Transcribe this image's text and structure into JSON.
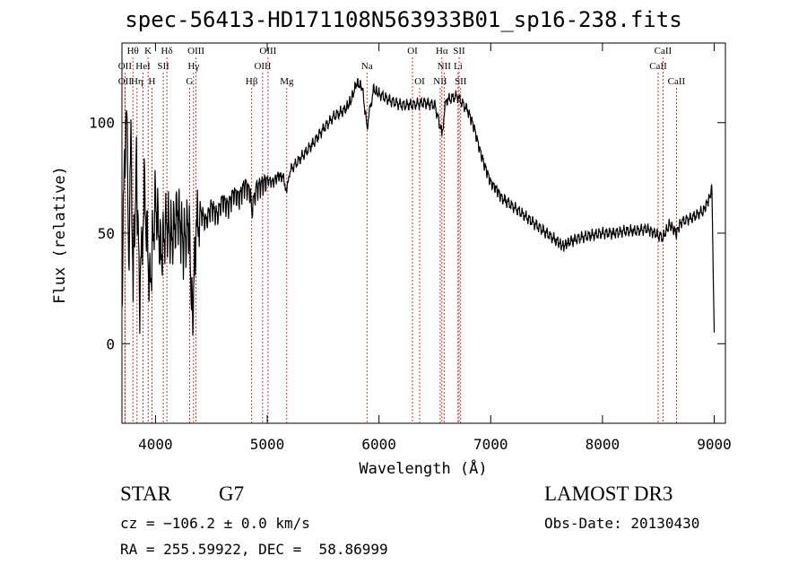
{
  "title": "spec-56413-HD171108N563933B01_sp16-238.fits",
  "info": {
    "object_class": "STAR",
    "subclass": "G7",
    "survey": "LAMOST DR3",
    "cz": "cz = −106.2 ± 0.0 km/s",
    "obs_date": "Obs-Date: 20130430",
    "radec": "RA = 255.59922, DEC =  58.86999"
  },
  "colors": {
    "spectrum": "#000000",
    "line_markers": "#cc0000",
    "axes": "#000000"
  },
  "chart_data": {
    "type": "line",
    "title": "spec-56413-HD171108N563933B01_sp16-238.fits",
    "xlabel": "Wavelength (Å)",
    "ylabel": "Flux (relative)",
    "xlim": [
      3700,
      9100
    ],
    "ylim": [
      -36,
      136
    ],
    "xticks": [
      4000,
      5000,
      6000,
      7000,
      8000,
      9000
    ],
    "yticks": [
      0,
      50,
      100
    ],
    "grid": false,
    "series": [
      {
        "points": [
          [
            3700,
            20
          ],
          [
            3720,
            75
          ],
          [
            3740,
            110
          ],
          [
            3760,
            40
          ],
          [
            3780,
            90
          ],
          [
            3800,
            30
          ],
          [
            3830,
            80
          ],
          [
            3860,
            20
          ],
          [
            3900,
            70
          ],
          [
            3950,
            25
          ],
          [
            4000,
            65
          ],
          [
            4050,
            40
          ],
          [
            4100,
            55
          ],
          [
            4150,
            48
          ],
          [
            4200,
            60
          ],
          [
            4250,
            45
          ],
          [
            4300,
            55
          ],
          [
            4330,
            10
          ],
          [
            4360,
            50
          ],
          [
            4400,
            60
          ],
          [
            4450,
            55
          ],
          [
            4500,
            62
          ],
          [
            4550,
            58
          ],
          [
            4600,
            65
          ],
          [
            4650,
            62
          ],
          [
            4700,
            68
          ],
          [
            4750,
            66
          ],
          [
            4800,
            72
          ],
          [
            4850,
            68
          ],
          [
            4861,
            60
          ],
          [
            4900,
            70
          ],
          [
            4950,
            72
          ],
          [
            5000,
            74
          ],
          [
            5050,
            73
          ],
          [
            5100,
            76
          ],
          [
            5150,
            75
          ],
          [
            5175,
            68
          ],
          [
            5200,
            78
          ],
          [
            5300,
            84
          ],
          [
            5400,
            90
          ],
          [
            5500,
            97
          ],
          [
            5600,
            103
          ],
          [
            5700,
            106
          ],
          [
            5750,
            110
          ],
          [
            5800,
            118
          ],
          [
            5850,
            116
          ],
          [
            5893,
            98
          ],
          [
            5950,
            115
          ],
          [
            6000,
            113
          ],
          [
            6100,
            110
          ],
          [
            6200,
            108
          ],
          [
            6300,
            108
          ],
          [
            6400,
            109
          ],
          [
            6500,
            108
          ],
          [
            6563,
            95
          ],
          [
            6600,
            110
          ],
          [
            6700,
            112
          ],
          [
            6800,
            105
          ],
          [
            6850,
            98
          ],
          [
            6900,
            88
          ],
          [
            6950,
            80
          ],
          [
            7000,
            73
          ],
          [
            7050,
            70
          ],
          [
            7100,
            66
          ],
          [
            7200,
            62
          ],
          [
            7300,
            58
          ],
          [
            7400,
            54
          ],
          [
            7500,
            50
          ],
          [
            7600,
            46
          ],
          [
            7650,
            44
          ],
          [
            7700,
            46
          ],
          [
            7800,
            48
          ],
          [
            7900,
            49
          ],
          [
            8000,
            50
          ],
          [
            8100,
            50
          ],
          [
            8200,
            51
          ],
          [
            8300,
            51
          ],
          [
            8400,
            52
          ],
          [
            8498,
            49
          ],
          [
            8542,
            48
          ],
          [
            8600,
            54
          ],
          [
            8662,
            50
          ],
          [
            8700,
            55
          ],
          [
            8800,
            57
          ],
          [
            8900,
            60
          ],
          [
            8950,
            65
          ],
          [
            8980,
            70
          ],
          [
            9000,
            5
          ]
        ]
      }
    ],
    "line_markers": [
      {
        "label": "Hθ",
        "x": 3798,
        "row": 0
      },
      {
        "label": "K",
        "x": 3934,
        "row": 0
      },
      {
        "label": "Hδ",
        "x": 4102,
        "row": 0
      },
      {
        "label": "OII",
        "x": 3727,
        "row": 1
      },
      {
        "label": "HeI",
        "x": 3889,
        "row": 1
      },
      {
        "label": "SII",
        "x": 4070,
        "row": 1
      },
      {
        "label": "OII",
        "x": 3727,
        "row": 2
      },
      {
        "label": "Hη",
        "x": 3835,
        "row": 2
      },
      {
        "label": "H",
        "x": 3969,
        "row": 2
      },
      {
        "label": "OIII",
        "x": 4363,
        "row": 0
      },
      {
        "label": "Hγ",
        "x": 4341,
        "row": 1
      },
      {
        "label": "G",
        "x": 4305,
        "row": 2
      },
      {
        "label": "OIII",
        "x": 5007,
        "row": 0
      },
      {
        "label": "OIII",
        "x": 4959,
        "row": 1
      },
      {
        "label": "Hβ",
        "x": 4861,
        "row": 2
      },
      {
        "label": "Mg",
        "x": 5175,
        "row": 2
      },
      {
        "label": "Na",
        "x": 5893,
        "row": 1
      },
      {
        "label": "OI",
        "x": 6300,
        "row": 0
      },
      {
        "label": "OI",
        "x": 6364,
        "row": 2
      },
      {
        "label": "Hα",
        "x": 6563,
        "row": 0
      },
      {
        "label": "NII",
        "x": 6583,
        "row": 1
      },
      {
        "label": "NII",
        "x": 6548,
        "row": 2
      },
      {
        "label": "SII",
        "x": 6717,
        "row": 0
      },
      {
        "label": "Li",
        "x": 6708,
        "row": 1
      },
      {
        "label": "SII",
        "x": 6731,
        "row": 2
      },
      {
        "label": "CaII",
        "x": 8542,
        "row": 0
      },
      {
        "label": "CaII",
        "x": 8498,
        "row": 1
      },
      {
        "label": "CaII",
        "x": 8662,
        "row": 2
      }
    ]
  }
}
